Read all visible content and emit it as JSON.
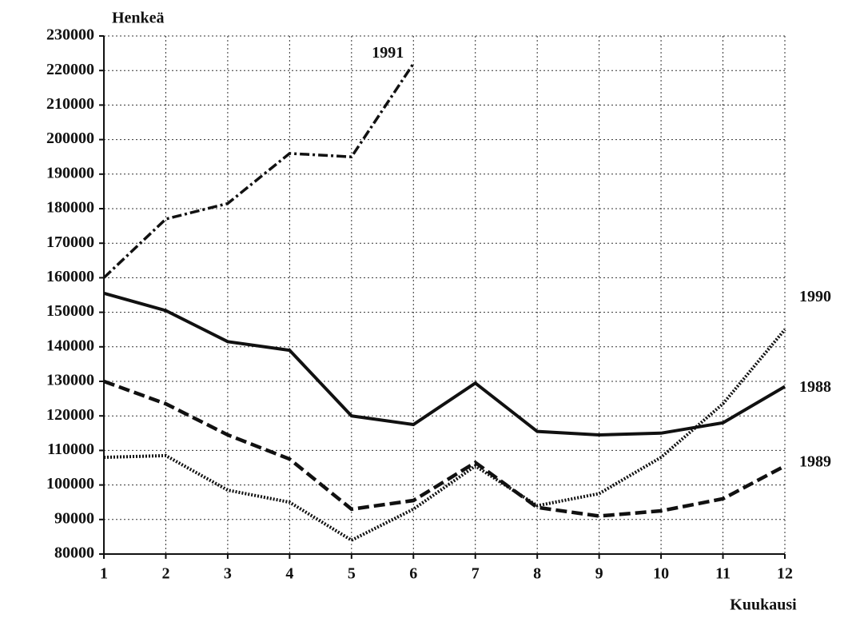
{
  "chart_data": {
    "type": "line",
    "y_axis_label": "Henkeä",
    "x_axis_label": "Kuukausi",
    "x": [
      1,
      2,
      3,
      4,
      5,
      6,
      7,
      8,
      9,
      10,
      11,
      12
    ],
    "xlim": [
      1,
      12
    ],
    "xticks": [
      1,
      2,
      3,
      4,
      5,
      6,
      7,
      8,
      9,
      10,
      11,
      12
    ],
    "ylim": [
      80000,
      230000
    ],
    "yticks": [
      80000,
      90000,
      100000,
      110000,
      120000,
      130000,
      140000,
      150000,
      160000,
      170000,
      180000,
      190000,
      200000,
      210000,
      220000,
      230000
    ],
    "grid": true,
    "series": [
      {
        "name": "1988",
        "color": "#111111",
        "style": "solid",
        "values": [
          155500,
          150500,
          141500,
          139000,
          120000,
          117500,
          129500,
          115500,
          114500,
          115000,
          118000,
          128500
        ]
      },
      {
        "name": "1989",
        "color": "#111111",
        "style": "dashed",
        "values": [
          130000,
          123500,
          114500,
          107500,
          93000,
          95500,
          106500,
          93500,
          91000,
          92500,
          96000,
          105500
        ]
      },
      {
        "name": "1990",
        "color": "#111111",
        "style": "dotted",
        "values": [
          108000,
          108500,
          98500,
          95000,
          84000,
          93000,
          105500,
          94000,
          97500,
          108000,
          123500,
          145000
        ]
      },
      {
        "name": "1991",
        "color": "#111111",
        "style": "dashdot",
        "values": [
          160000,
          177000,
          181500,
          196000,
          195000,
          222000,
          null,
          null,
          null,
          null,
          null,
          null
        ]
      }
    ]
  }
}
